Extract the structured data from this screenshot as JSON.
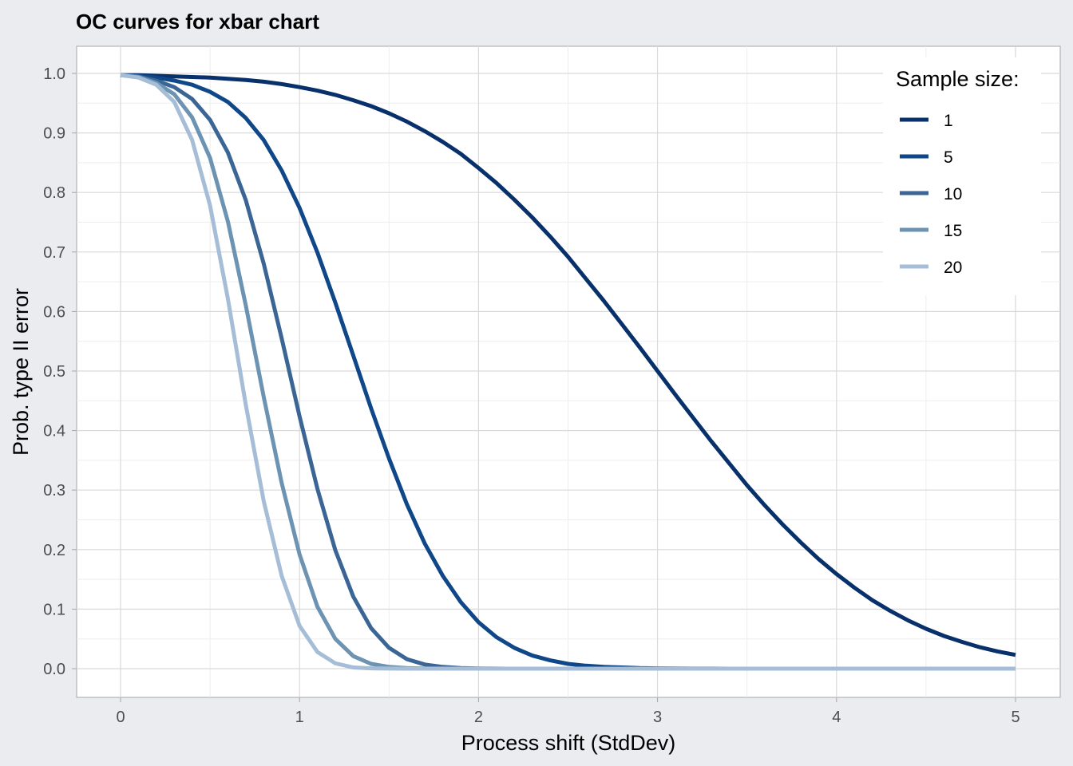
{
  "chart_data": {
    "type": "line",
    "title": "OC curves for xbar chart",
    "xlabel": "Process shift (StdDev)",
    "ylabel": "Prob. type II error",
    "xlim": [
      0,
      5
    ],
    "ylim": [
      0,
      1
    ],
    "x_ticks": [
      "0",
      "1",
      "2",
      "3",
      "4",
      "5"
    ],
    "y_ticks": [
      "0.0",
      "0.1",
      "0.2",
      "0.3",
      "0.4",
      "0.5",
      "0.6",
      "0.7",
      "0.8",
      "0.9",
      "1.0"
    ],
    "grid": true,
    "legend_position": "top-right",
    "legend_title": "Sample size:",
    "x": [
      0.0,
      0.1,
      0.2,
      0.3,
      0.4,
      0.5,
      0.6,
      0.7,
      0.8,
      0.9,
      1.0,
      1.1,
      1.2,
      1.3,
      1.4,
      1.5,
      1.6,
      1.7,
      1.8,
      1.9,
      2.0,
      2.1,
      2.2,
      2.3,
      2.4,
      2.5,
      2.6,
      2.7,
      2.8,
      2.9,
      3.0,
      3.1,
      3.2,
      3.3,
      3.4,
      3.5,
      3.6,
      3.7,
      3.8,
      3.9,
      4.0,
      4.1,
      4.2,
      4.3,
      4.4,
      4.5,
      4.6,
      4.7,
      4.8,
      4.9,
      5.0
    ],
    "series": [
      {
        "name": "1",
        "color": "#08306B",
        "values": [
          0.997,
          0.997,
          0.996,
          0.995,
          0.994,
          0.993,
          0.991,
          0.989,
          0.986,
          0.982,
          0.977,
          0.971,
          0.964,
          0.955,
          0.945,
          0.933,
          0.919,
          0.903,
          0.885,
          0.865,
          0.841,
          0.816,
          0.788,
          0.758,
          0.726,
          0.692,
          0.655,
          0.618,
          0.579,
          0.54,
          0.5,
          0.46,
          0.421,
          0.382,
          0.345,
          0.308,
          0.274,
          0.242,
          0.212,
          0.184,
          0.159,
          0.136,
          0.115,
          0.097,
          0.081,
          0.067,
          0.055,
          0.045,
          0.036,
          0.029,
          0.023
        ]
      },
      {
        "name": "5",
        "color": "#0F4788",
        "values": [
          0.997,
          0.996,
          0.993,
          0.988,
          0.981,
          0.969,
          0.952,
          0.925,
          0.888,
          0.837,
          0.774,
          0.699,
          0.615,
          0.526,
          0.437,
          0.353,
          0.276,
          0.21,
          0.156,
          0.112,
          0.078,
          0.053,
          0.035,
          0.022,
          0.014,
          0.008,
          0.005,
          0.003,
          0.002,
          0.001,
          0.0005,
          0.0003,
          0.0001,
          0.0001,
          0.0,
          0.0,
          0.0,
          0.0,
          0.0,
          0.0,
          0.0,
          0.0,
          0.0,
          0.0,
          0.0,
          0.0,
          0.0,
          0.0,
          0.0,
          0.0,
          0.0
        ]
      },
      {
        "name": "10",
        "color": "#3A6595",
        "values": [
          0.997,
          0.995,
          0.988,
          0.977,
          0.957,
          0.922,
          0.867,
          0.787,
          0.68,
          0.555,
          0.424,
          0.302,
          0.199,
          0.121,
          0.068,
          0.035,
          0.016,
          0.007,
          0.003,
          0.001,
          0.0003,
          0.0001,
          0.0,
          0.0,
          0.0,
          0.0,
          0.0,
          0.0,
          0.0,
          0.0,
          0.0,
          0.0,
          0.0,
          0.0,
          0.0,
          0.0,
          0.0,
          0.0,
          0.0,
          0.0,
          0.0,
          0.0,
          0.0,
          0.0,
          0.0,
          0.0,
          0.0,
          0.0,
          0.0,
          0.0,
          0.0
        ]
      },
      {
        "name": "15",
        "color": "#6C93B2",
        "values": [
          0.997,
          0.994,
          0.984,
          0.965,
          0.926,
          0.858,
          0.751,
          0.61,
          0.456,
          0.312,
          0.192,
          0.104,
          0.05,
          0.021,
          0.008,
          0.003,
          0.001,
          0.0003,
          0.0001,
          0.0,
          0.0,
          0.0,
          0.0,
          0.0,
          0.0,
          0.0,
          0.0,
          0.0,
          0.0,
          0.0,
          0.0,
          0.0,
          0.0,
          0.0,
          0.0,
          0.0,
          0.0,
          0.0,
          0.0,
          0.0,
          0.0,
          0.0,
          0.0,
          0.0,
          0.0,
          0.0,
          0.0,
          0.0,
          0.0,
          0.0,
          0.0
        ]
      },
      {
        "name": "20",
        "color": "#A6BDD7",
        "values": [
          0.997,
          0.993,
          0.981,
          0.952,
          0.888,
          0.778,
          0.621,
          0.443,
          0.281,
          0.156,
          0.072,
          0.028,
          0.009,
          0.002,
          0.0005,
          0.0001,
          0.0,
          0.0,
          0.0,
          0.0,
          0.0,
          0.0,
          0.0,
          0.0,
          0.0,
          0.0,
          0.0,
          0.0,
          0.0,
          0.0,
          0.0,
          0.0,
          0.0,
          0.0,
          0.0,
          0.0,
          0.0,
          0.0,
          0.0,
          0.0,
          0.0,
          0.0,
          0.0,
          0.0,
          0.0,
          0.0,
          0.0,
          0.0,
          0.0,
          0.0,
          0.0
        ]
      }
    ]
  },
  "colors": {
    "page_background": "#EBECF0",
    "panel_background": "#FFFFFF",
    "grid_major": "#D9D9D9",
    "grid_minor": "#EDEDED",
    "panel_border": "#A6A6A6",
    "tick_text": "#4D4D4D"
  }
}
